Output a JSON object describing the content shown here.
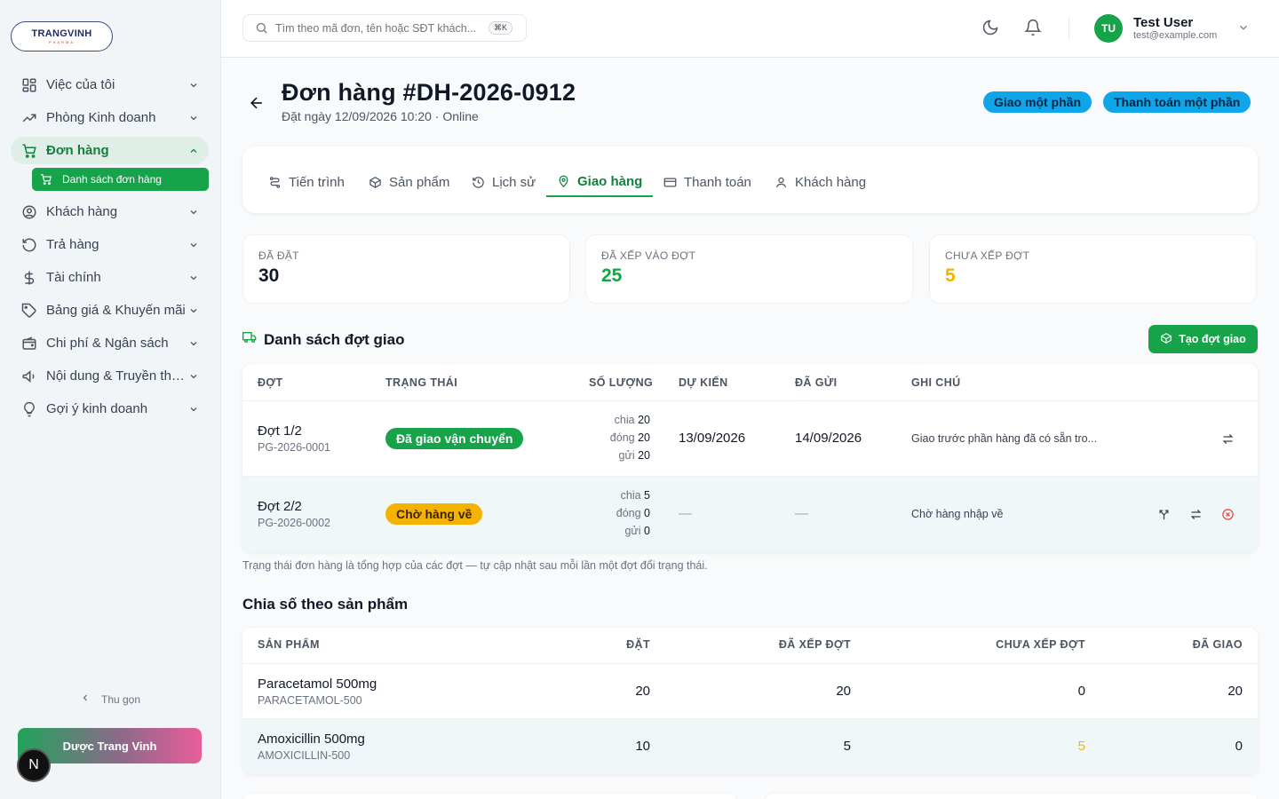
{
  "brand": {
    "logo_main": "TRANGVINH",
    "logo_sub": "PHARMA",
    "footer_pill": "Dược Trang Vinh",
    "footer_badge": "N"
  },
  "sidebar": {
    "items": [
      {
        "label": "Việc của tôi",
        "icon": "grid-icon"
      },
      {
        "label": "Phòng Kinh doanh",
        "icon": "trending-up-icon"
      },
      {
        "label": "Đơn hàng",
        "icon": "cart-icon",
        "active": true
      },
      {
        "label": "Khách hàng",
        "icon": "user-circle-icon"
      },
      {
        "label": "Trả hàng",
        "icon": "undo-icon"
      },
      {
        "label": "Tài chính",
        "icon": "dollar-icon"
      },
      {
        "label": "Bảng giá & Khuyến mãi",
        "icon": "tag-icon"
      },
      {
        "label": "Chi phí & Ngân sách",
        "icon": "wallet-icon"
      },
      {
        "label": "Nội dung & Truyền thông",
        "icon": "megaphone-icon"
      },
      {
        "label": "Gợi ý kinh doanh",
        "icon": "lightbulb-icon"
      }
    ],
    "subitem": "Danh sách đơn hàng",
    "collapse": "Thu gọn"
  },
  "topbar": {
    "search_placeholder": "Tìm theo mã đơn, tên hoặc SĐT khách...",
    "search_kbd": "⌘K",
    "user_name": "Test User",
    "user_email": "test@example.com",
    "avatar": "TU"
  },
  "order": {
    "title": "Đơn hàng #DH-2026-0912",
    "subtitle": "Đặt ngày 12/09/2026 10:20 · Online",
    "badges": [
      "Giao một phần",
      "Thanh toán một phần"
    ]
  },
  "tabs": [
    "Tiến trình",
    "Sản phẩm",
    "Lịch sử",
    "Giao hàng",
    "Thanh toán",
    "Khách hàng"
  ],
  "stats": [
    {
      "label": "Đã đặt",
      "value": "30",
      "color": "#111827"
    },
    {
      "label": "Đã xếp vào đợt",
      "value": "25",
      "color": "#16a34a"
    },
    {
      "label": "Chưa xếp đợt",
      "value": "5",
      "color": "#f5b301"
    }
  ],
  "shipments": {
    "title": "Danh sách đợt giao",
    "create_button": "Tạo đợt giao",
    "headers": [
      "Đợt",
      "Trạng thái",
      "Số lượng",
      "Dự kiến",
      "Đã gửi",
      "Ghi chú"
    ],
    "qty_labels": {
      "split": "chia",
      "packed": "đóng",
      "sent": "gửi"
    },
    "rows": [
      {
        "name": "Đợt 1/2",
        "code": "PG-2026-0001",
        "status": "Đã giao vận chuyển",
        "split": "20",
        "packed": "20",
        "sent": "20",
        "expected": "13/09/2026",
        "shipped": "14/09/2026",
        "note": "Giao trước phần hàng đã có sẵn tro..."
      },
      {
        "name": "Đợt 2/2",
        "code": "PG-2026-0002",
        "status": "Chờ hàng về",
        "split": "5",
        "packed": "0",
        "sent": "0",
        "expected": "—",
        "shipped": "—",
        "note": "Chờ hàng nhập về"
      }
    ],
    "footnote": "Trạng thái đơn hàng là tổng hợp của các đợt — tự cập nhật sau mỗi lần một đợt đổi trạng thái."
  },
  "allocation": {
    "title": "Chia số theo sản phẩm",
    "headers": [
      "Sản phẩm",
      "Đặt",
      "Đã xếp đợt",
      "Chưa xếp đợt",
      "Đã giao"
    ],
    "rows": [
      {
        "name": "Paracetamol 500mg",
        "sku": "PARACETAMOL-500",
        "ordered": "20",
        "assigned": "20",
        "unassigned": "0",
        "delivered": "20"
      },
      {
        "name": "Amoxicillin 500mg",
        "sku": "AMOXICILLIN-500",
        "ordered": "10",
        "assigned": "5",
        "unassigned": "5",
        "delivered": "0"
      }
    ]
  },
  "colors": {
    "accent": "#16a34a",
    "info": "#0ea5e9",
    "warning": "#f5b301",
    "danger": "#ef4444"
  }
}
